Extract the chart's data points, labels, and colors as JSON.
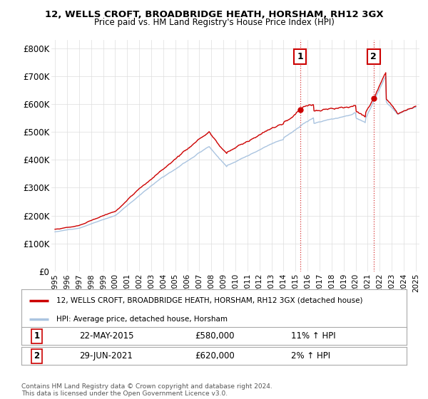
{
  "title_line1": "12, WELLS CROFT, BROADBRIDGE HEATH, HORSHAM, RH12 3GX",
  "title_line2": "Price paid vs. HM Land Registry's House Price Index (HPI)",
  "ylim": [
    0,
    830000
  ],
  "yticks": [
    0,
    100000,
    200000,
    300000,
    400000,
    500000,
    600000,
    700000,
    800000
  ],
  "ytick_labels": [
    "£0",
    "£100K",
    "£200K",
    "£300K",
    "£400K",
    "£500K",
    "£600K",
    "£700K",
    "£800K"
  ],
  "hpi_color": "#aac4e0",
  "price_color": "#cc0000",
  "sale1_date": "22-MAY-2015",
  "sale1_price": "£580,000",
  "sale1_hpi": "11% ↑ HPI",
  "sale1_year": 2015.38,
  "sale1_value": 580000,
  "sale2_date": "29-JUN-2021",
  "sale2_price": "£620,000",
  "sale2_hpi": "2% ↑ HPI",
  "sale2_year": 2021.49,
  "sale2_value": 620000,
  "legend_line1": "12, WELLS CROFT, BROADBRIDGE HEATH, HORSHAM, RH12 3GX (detached house)",
  "legend_line2": "HPI: Average price, detached house, Horsham",
  "footnote": "Contains HM Land Registry data © Crown copyright and database right 2024.\nThis data is licensed under the Open Government Licence v3.0.",
  "background_color": "#ffffff",
  "grid_color": "#dddddd",
  "xlim_left": 1994.7,
  "xlim_right": 2025.3
}
